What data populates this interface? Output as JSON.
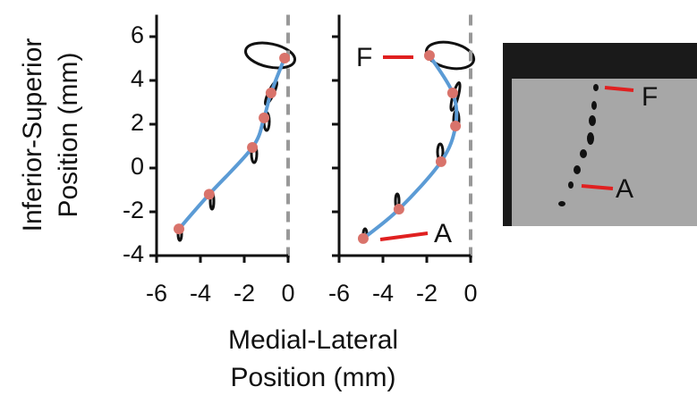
{
  "chart_data": [
    {
      "type": "line",
      "ylabel": [
        "Inferior-Superior",
        "Position (mm)"
      ],
      "xlim": [
        -6,
        0
      ],
      "ylim": [
        -4,
        7
      ],
      "xticks": [
        -6,
        -4,
        -2,
        0
      ],
      "yticks": [
        -4,
        -2,
        0,
        2,
        4,
        6
      ],
      "show_ytick_labels": true,
      "vline": 0,
      "color": "#5b9bd5",
      "marker_color": "#d9736b",
      "x": [
        -4.98,
        -3.6,
        -1.63,
        -1.1,
        -0.78,
        -0.16
      ],
      "values": [
        -2.78,
        -1.2,
        0.94,
        2.29,
        3.43,
        5.02
      ]
    },
    {
      "type": "line",
      "xlim": [
        -6,
        0
      ],
      "ylim": [
        -4,
        7
      ],
      "xticks": [
        -6,
        -4,
        -2,
        0
      ],
      "yticks": [
        -4,
        -2,
        0,
        2,
        4,
        6
      ],
      "show_ytick_labels": false,
      "vline": 0,
      "color": "#5b9bd5",
      "marker_color": "#d9736b",
      "x": [
        -4.9,
        -3.27,
        -1.35,
        -0.69,
        -0.82,
        -1.88
      ],
      "values": [
        -3.22,
        -1.88,
        0.29,
        1.92,
        3.43,
        5.14
      ],
      "annotations": [
        "F",
        "A"
      ]
    }
  ],
  "xlabel": [
    "Medial-Lateral",
    "Position (mm)"
  ],
  "photo_labels": [
    "F",
    "A"
  ]
}
